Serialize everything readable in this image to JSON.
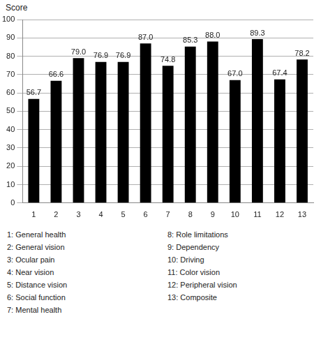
{
  "chart_data": {
    "type": "bar",
    "y_label": "Score",
    "categories": [
      "1",
      "2",
      "3",
      "4",
      "5",
      "6",
      "7",
      "8",
      "9",
      "10",
      "11",
      "12",
      "13"
    ],
    "values": [
      56.7,
      66.6,
      79.0,
      76.9,
      76.9,
      87.0,
      74.8,
      85.3,
      88.0,
      67.0,
      89.3,
      67.4,
      78.2
    ],
    "value_labels": [
      "56.7",
      "66.6",
      "79.0",
      "76.9",
      "76.9",
      "87.0",
      "74.8",
      "85.3",
      "88.0",
      "67.0",
      "89.3",
      "67.4",
      "78.2"
    ],
    "data_labels": true,
    "color": "#000000",
    "ylim": [
      0,
      100
    ],
    "yticks": [
      0,
      10,
      20,
      30,
      40,
      50,
      60,
      70,
      80,
      90,
      100
    ],
    "grid": true,
    "annotations": [
      "1: General health",
      "2: General vision",
      "3: Ocular pain",
      "4: Near vision",
      "5: Distance vision",
      "6: Social function",
      "7: Mental health",
      "8: Role limitations",
      "9: Dependency",
      "10: Driving",
      "11: Color vision",
      "12: Peripheral vision",
      "13: Composite"
    ]
  }
}
